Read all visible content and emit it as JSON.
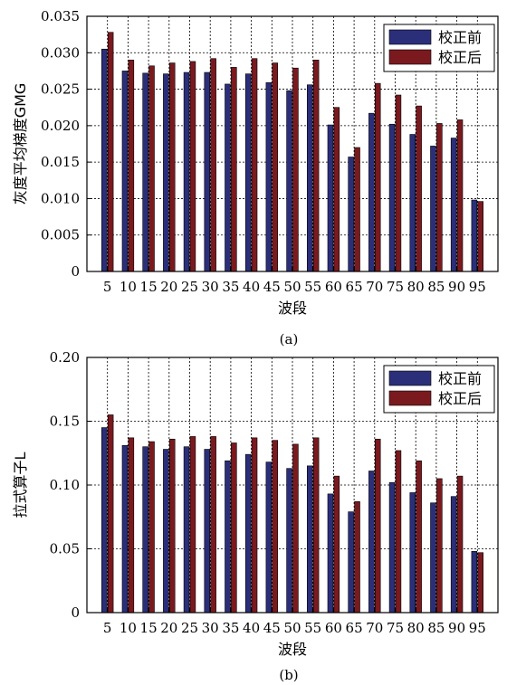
{
  "chart_data": [
    {
      "type": "bar",
      "caption": "(a)",
      "categories": [
        "5",
        "10",
        "15",
        "20",
        "25",
        "30",
        "35",
        "40",
        "45",
        "50",
        "55",
        "60",
        "65",
        "70",
        "75",
        "80",
        "85",
        "90",
        "95"
      ],
      "series": [
        {
          "name": "校正前",
          "color": "#2b2f7a",
          "values": [
            0.0305,
            0.0275,
            0.0272,
            0.0271,
            0.0273,
            0.0273,
            0.0257,
            0.0271,
            0.0259,
            0.0248,
            0.0256,
            0.0201,
            0.0157,
            0.0217,
            0.0202,
            0.0188,
            0.0172,
            0.0183,
            0.0098
          ]
        },
        {
          "name": "校正后",
          "color": "#7a1a1f",
          "values": [
            0.0328,
            0.029,
            0.0282,
            0.0286,
            0.0288,
            0.0292,
            0.028,
            0.0292,
            0.0286,
            0.0279,
            0.029,
            0.0225,
            0.017,
            0.0258,
            0.0242,
            0.0227,
            0.0203,
            0.0208,
            0.0096
          ]
        }
      ],
      "xlabel": "波段",
      "ylabel": "灰度平均梯度GMG",
      "ylim": [
        0,
        0.035
      ],
      "yticks": [
        "0",
        "0.005",
        "0.010",
        "0.015",
        "0.020",
        "0.025",
        "0.030",
        "0.035"
      ],
      "grid": true,
      "legend": "top-right"
    },
    {
      "type": "bar",
      "caption": "(b)",
      "categories": [
        "5",
        "10",
        "15",
        "20",
        "25",
        "30",
        "35",
        "40",
        "45",
        "50",
        "55",
        "60",
        "65",
        "70",
        "75",
        "80",
        "85",
        "90",
        "95"
      ],
      "series": [
        {
          "name": "校正前",
          "color": "#2b2f7a",
          "values": [
            0.145,
            0.131,
            0.13,
            0.128,
            0.13,
            0.128,
            0.119,
            0.124,
            0.118,
            0.113,
            0.115,
            0.093,
            0.079,
            0.111,
            0.102,
            0.094,
            0.086,
            0.091,
            0.048
          ]
        },
        {
          "name": "校正后",
          "color": "#7a1a1f",
          "values": [
            0.155,
            0.137,
            0.134,
            0.136,
            0.138,
            0.138,
            0.133,
            0.137,
            0.135,
            0.132,
            0.137,
            0.107,
            0.087,
            0.136,
            0.127,
            0.119,
            0.105,
            0.107,
            0.047
          ]
        }
      ],
      "xlabel": "波段",
      "ylabel": "拉式算子L",
      "ylim": [
        0,
        0.2
      ],
      "yticks": [
        "0",
        "0.05",
        "0.10",
        "0.15",
        "0.20"
      ],
      "grid": true,
      "legend": "top-right"
    }
  ]
}
